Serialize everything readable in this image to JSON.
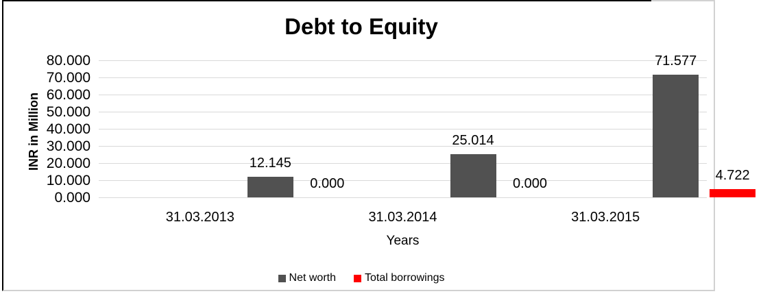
{
  "page": {
    "background": "#ffffff",
    "border_black": "#000000",
    "border_gray": "#d1d1d1"
  },
  "chart_data": {
    "type": "bar",
    "title": "Debt to Equity",
    "xlabel": "Years",
    "ylabel": "INR in Million",
    "categories": [
      "31.03.2013",
      "31.03.2014",
      "31.03.2015"
    ],
    "series": [
      {
        "name": "Net worth",
        "color": "#515151",
        "values": [
          12.145,
          25.014,
          71.577
        ],
        "labels": [
          "12.145",
          "25.014",
          "71.577"
        ]
      },
      {
        "name": "Total borrowings",
        "color": "#ff0000",
        "values": [
          0.0,
          0.0,
          4.722
        ],
        "labels": [
          "0.000",
          "0.000",
          "4.722"
        ]
      }
    ],
    "ylim": [
      0,
      80
    ],
    "ytick_step": 10,
    "ytick_labels": [
      "0.000",
      "10.000",
      "20.000",
      "30.000",
      "40.000",
      "50.000",
      "60.000",
      "70.000",
      "80.000"
    ],
    "gridline_color": "#d9d9d9",
    "grid": true,
    "legend_position": "bottom"
  }
}
